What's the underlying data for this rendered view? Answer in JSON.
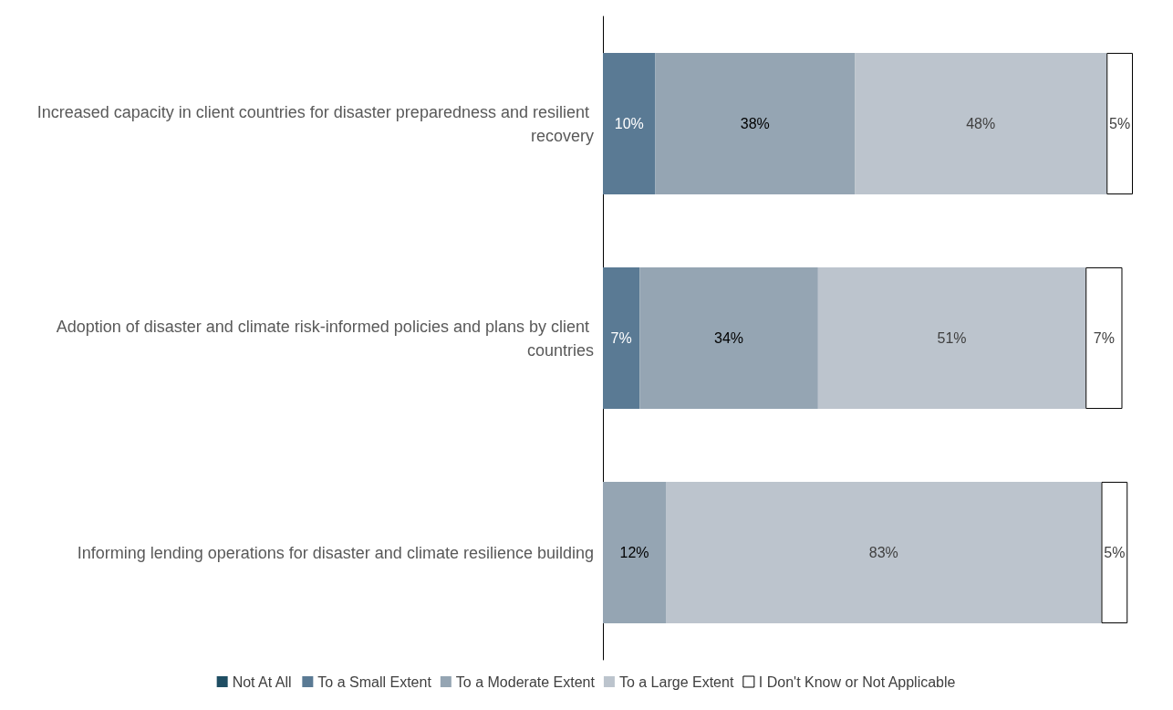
{
  "chart_data": {
    "type": "bar",
    "orientation": "horizontal",
    "stacked": true,
    "legend": "bottom",
    "categories": [
      "Increased capacity in client countries for disaster preparedness and resilient recovery",
      "Adoption of disaster and climate risk-informed policies and plans by client countries",
      "Informing lending operations for disaster and climate resilience building"
    ],
    "series": [
      {
        "name": "Not At All",
        "color": "#1f4e63",
        "values": [
          null,
          null,
          null
        ]
      },
      {
        "name": "To a Small Extent",
        "color": "#5a7a94",
        "values": [
          10,
          7,
          null
        ],
        "value_labels": [
          "10%",
          "7%",
          null
        ]
      },
      {
        "name": "To a Moderate Extent",
        "color": "#95a5b3",
        "values": [
          38,
          34,
          12
        ],
        "value_labels": [
          "38%",
          "34%",
          "12%"
        ]
      },
      {
        "name": "To a Large Extent",
        "color": "#bcc4cd",
        "values": [
          48,
          51,
          83
        ],
        "value_labels": [
          "48%",
          "51%",
          "83%"
        ]
      },
      {
        "name": "I Don't Know or Not Applicable",
        "color": "#ffffff",
        "values": [
          5,
          7,
          5
        ],
        "value_labels": [
          "5%",
          "7%",
          "5%"
        ]
      }
    ]
  }
}
